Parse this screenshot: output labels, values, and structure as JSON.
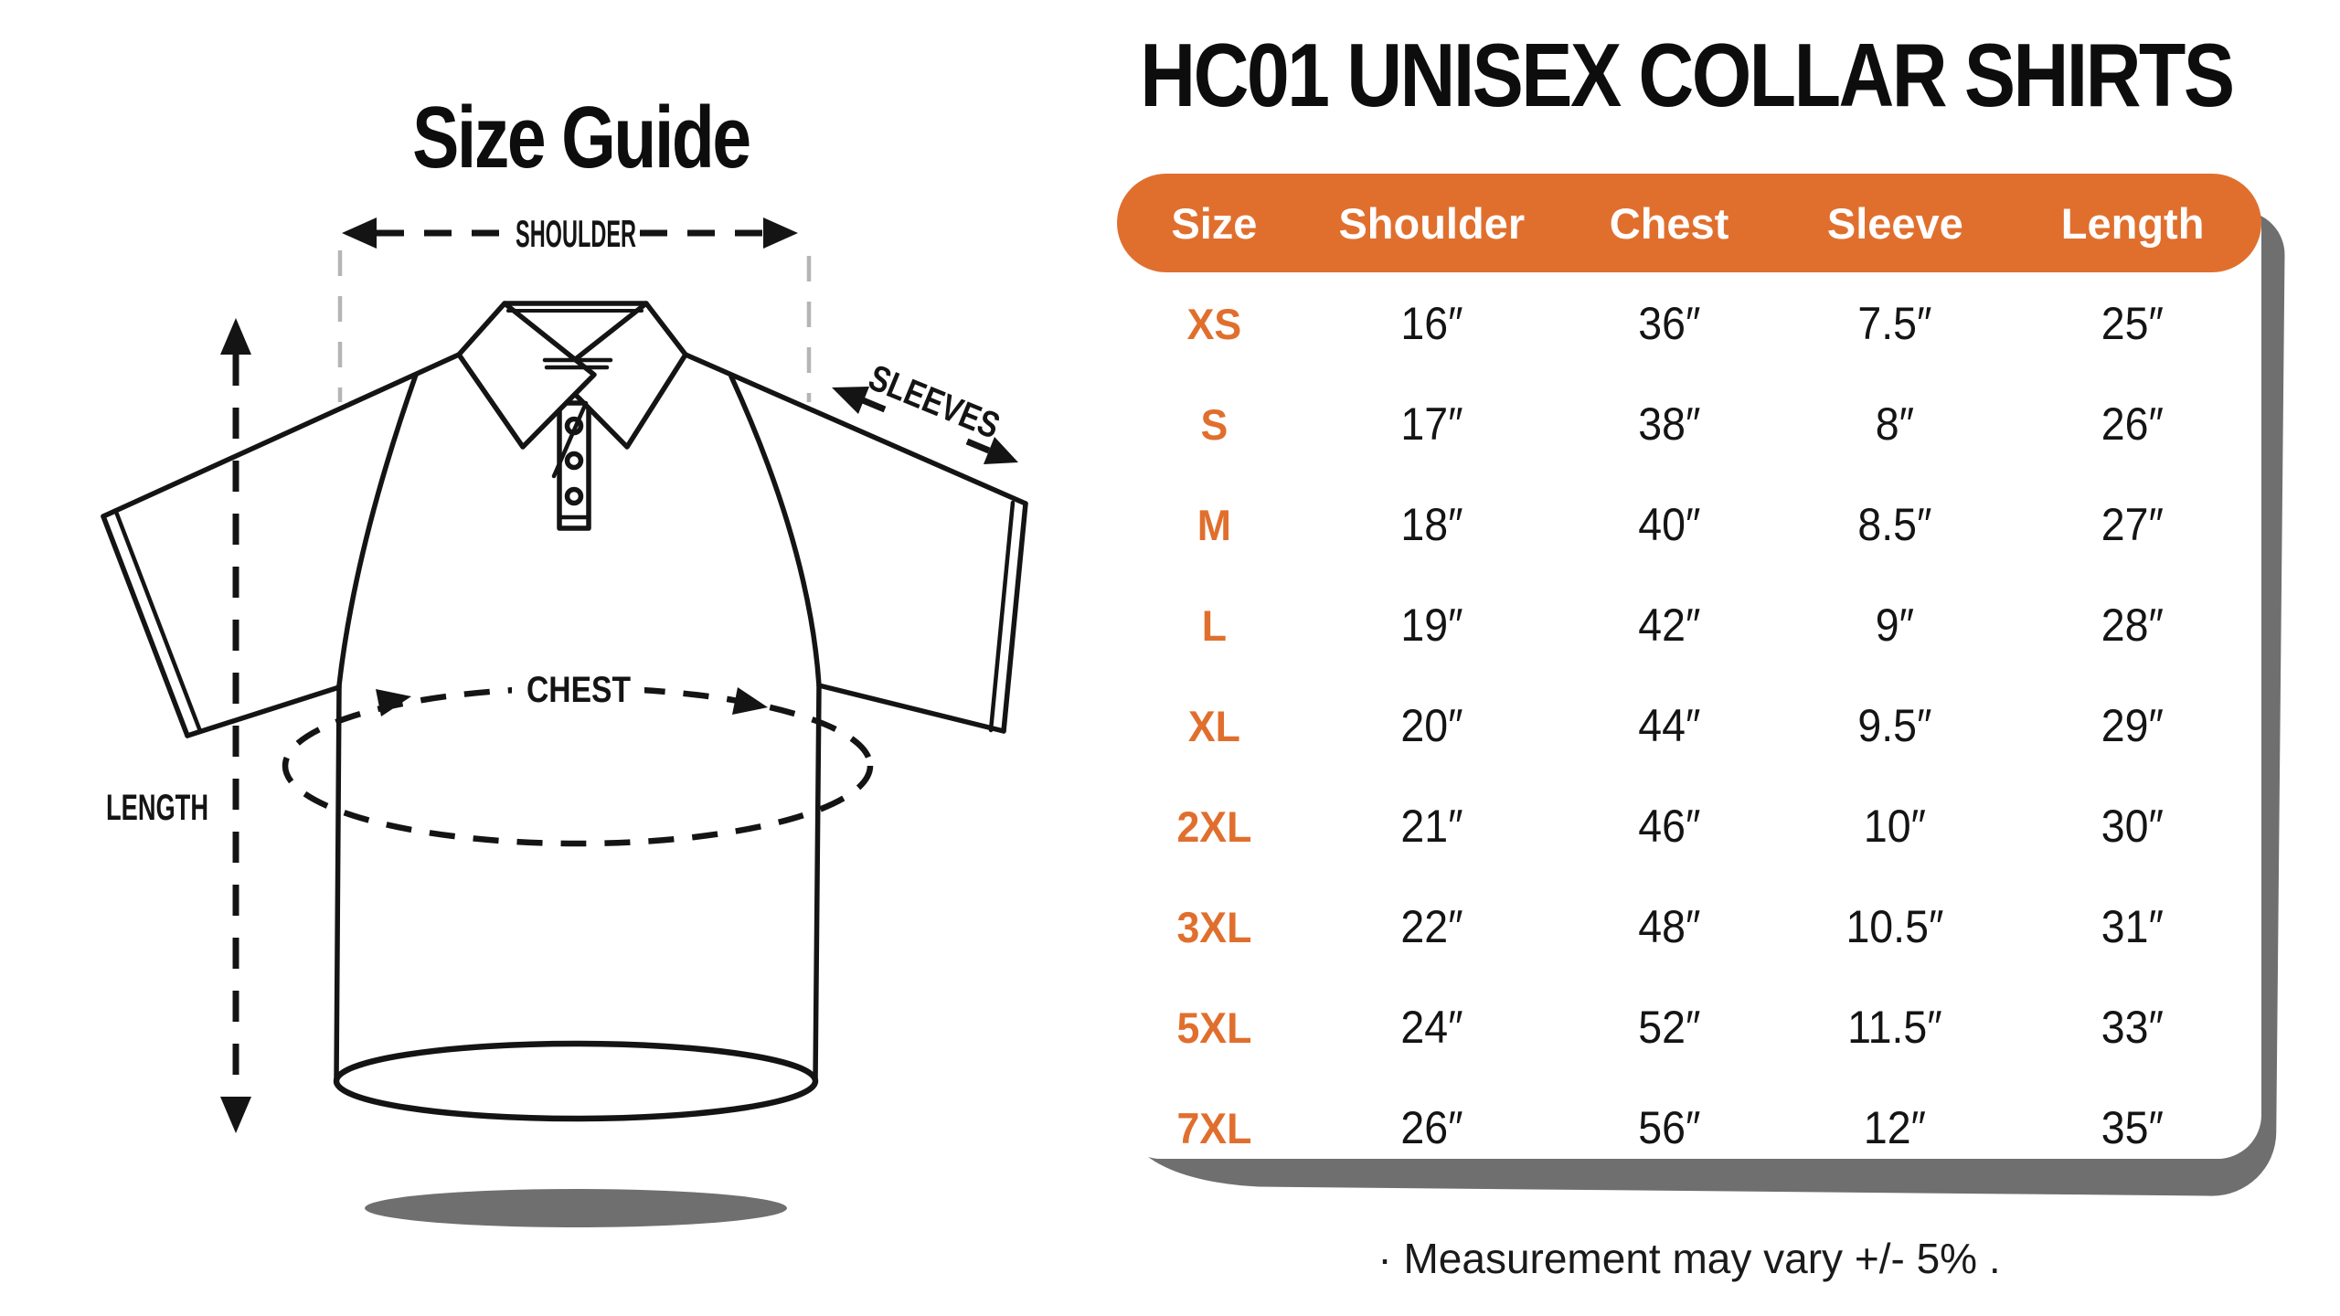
{
  "left_panel": {
    "title": "Size Guide",
    "measurement_labels": {
      "shoulder": "SHOULDER",
      "sleeves": "SLEEVES",
      "chest": "CHEST",
      "length": "LENGTH"
    }
  },
  "right_panel": {
    "title": "HC01 UNISEX COLLAR SHIRTS",
    "table": {
      "headers": [
        "Size",
        "Shoulder",
        "Chest",
        "Sleeve",
        "Length"
      ],
      "rows": [
        {
          "size": "XS",
          "shoulder": "16″",
          "chest": "36″",
          "sleeve": "7.5″",
          "length": "25″"
        },
        {
          "size": "S",
          "shoulder": "17″",
          "chest": "38″",
          "sleeve": "8″",
          "length": "26″"
        },
        {
          "size": "M",
          "shoulder": "18″",
          "chest": "40″",
          "sleeve": "8.5″",
          "length": "27″"
        },
        {
          "size": "L",
          "shoulder": "19″",
          "chest": "42″",
          "sleeve": "9″",
          "length": "28″"
        },
        {
          "size": "XL",
          "shoulder": "20″",
          "chest": "44″",
          "sleeve": "9.5″",
          "length": "29″"
        },
        {
          "size": "2XL",
          "shoulder": "21″",
          "chest": "46″",
          "sleeve": "10″",
          "length": "30″"
        },
        {
          "size": "3XL",
          "shoulder": "22″",
          "chest": "48″",
          "sleeve": "10.5″",
          "length": "31″"
        },
        {
          "size": "5XL",
          "shoulder": "24″",
          "chest": "52″",
          "sleeve": "11.5″",
          "length": "33″"
        },
        {
          "size": "7XL",
          "shoulder": "26″",
          "chest": "56″",
          "sleeve": "12″",
          "length": "35″"
        }
      ]
    },
    "footnote": "· Measurement may vary +/- 5% ."
  },
  "colors": {
    "accent": "#E06F2E",
    "shadow_gray": "#6F6F6F",
    "ink": "#141414",
    "guide_line_gray": "#B5B5B5"
  }
}
